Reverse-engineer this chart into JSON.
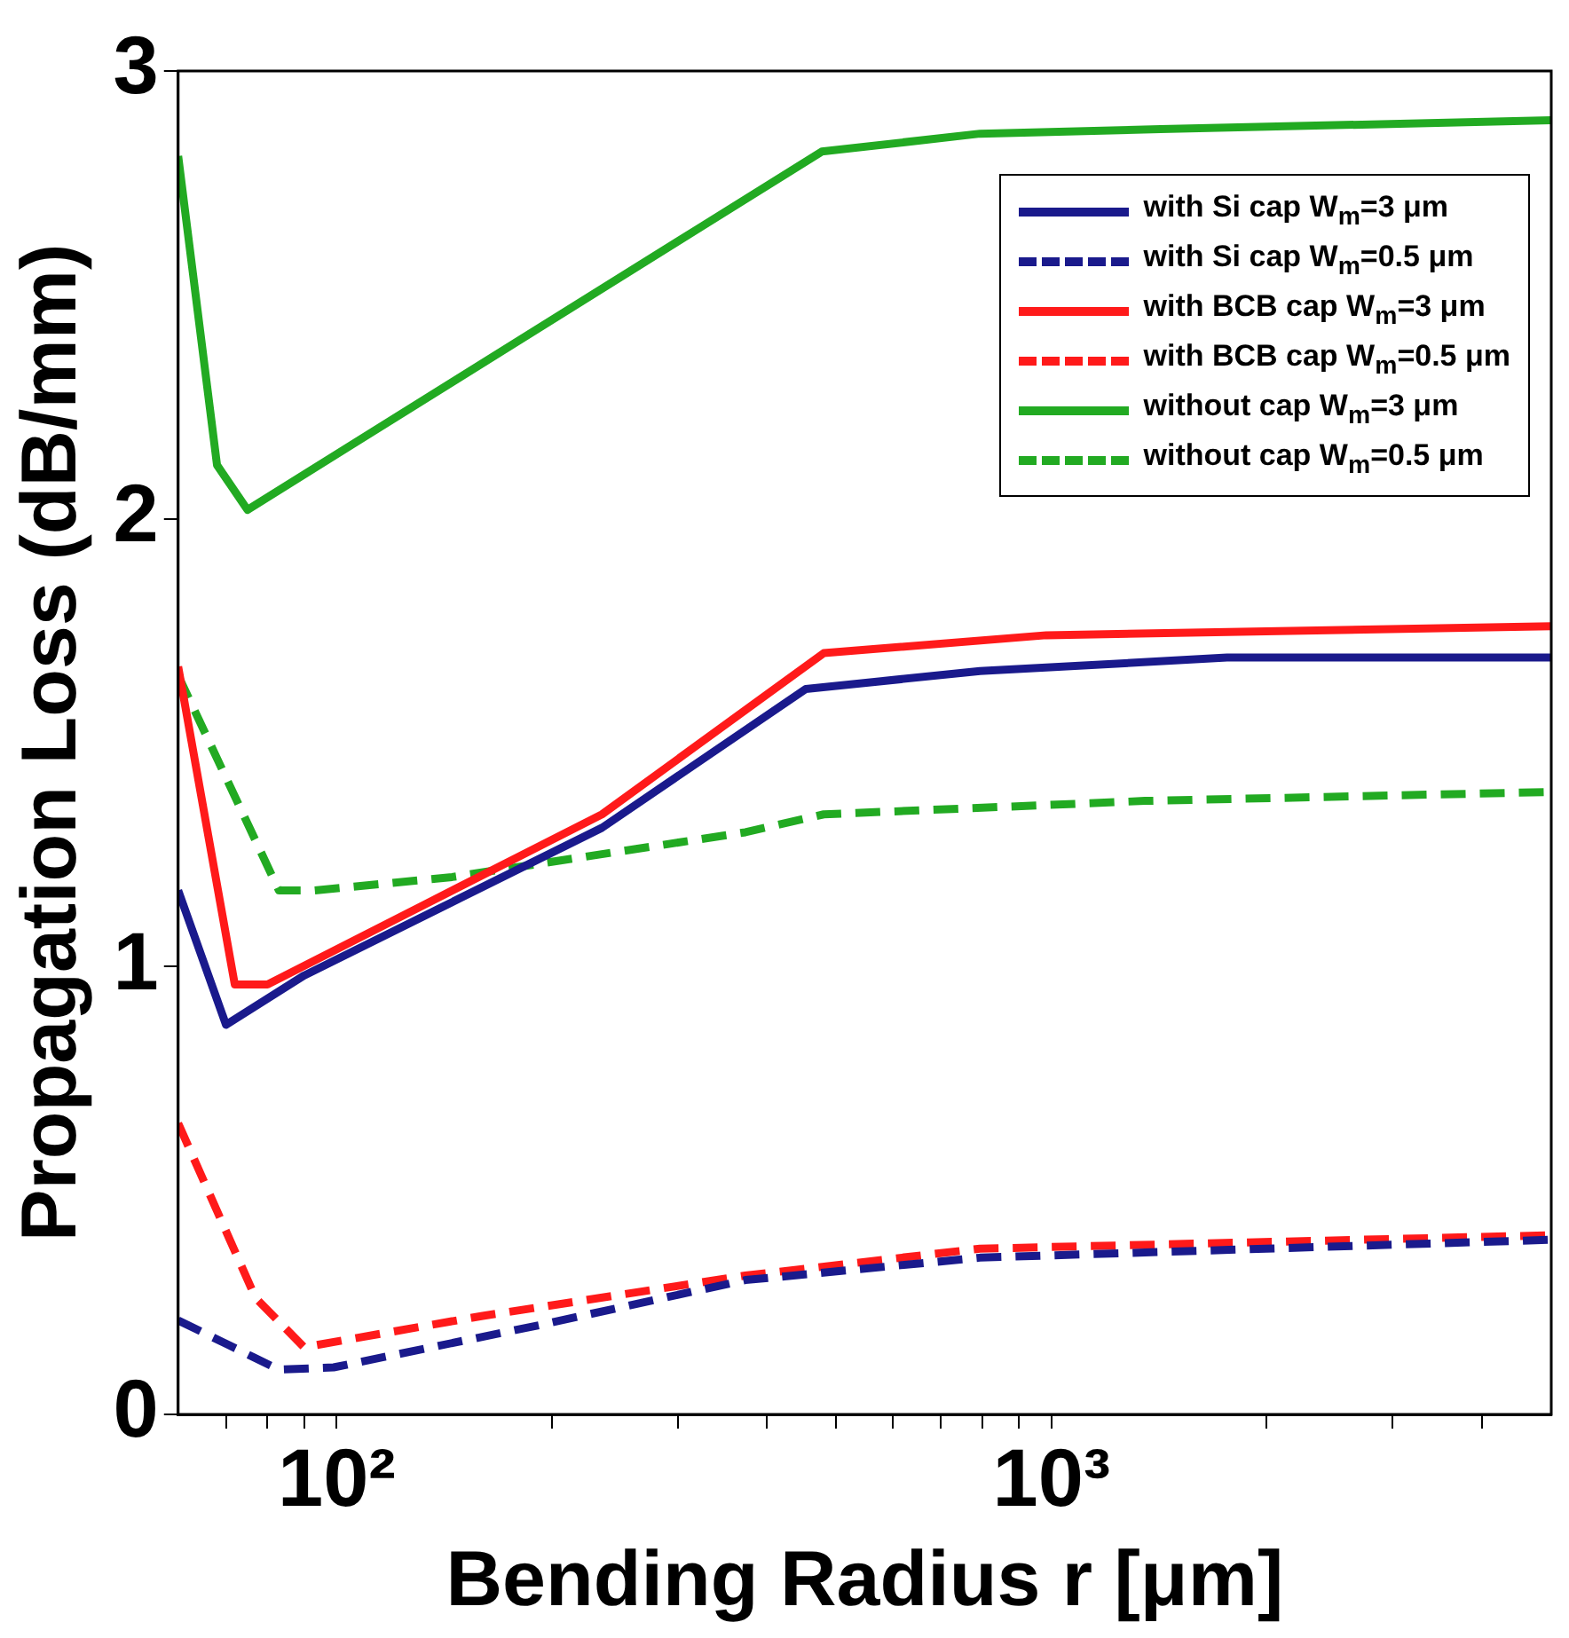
{
  "chart_data": {
    "type": "line",
    "xlabel": "Bending Radius r [μm]",
    "ylabel": "Propagation Loss (dB/mm)",
    "log": "x",
    "xlim": [
      60,
      5000
    ],
    "ylim": [
      0,
      3
    ],
    "xticks": [
      {
        "value": 70,
        "label": null
      },
      {
        "value": 80,
        "label": null
      },
      {
        "value": 90,
        "label": null
      },
      {
        "value": 100,
        "label": "10²"
      },
      {
        "value": 200,
        "label": null
      },
      {
        "value": 300,
        "label": null
      },
      {
        "value": 400,
        "label": null
      },
      {
        "value": 500,
        "label": null
      },
      {
        "value": 600,
        "label": null
      },
      {
        "value": 700,
        "label": null
      },
      {
        "value": 800,
        "label": null
      },
      {
        "value": 900,
        "label": null
      },
      {
        "value": 1000,
        "label": "10³"
      },
      {
        "value": 2000,
        "label": null
      },
      {
        "value": 3000,
        "label": null
      },
      {
        "value": 4000,
        "label": null
      }
    ],
    "yticks": [
      0,
      1,
      2,
      3
    ],
    "grid": false,
    "legend": "top right",
    "marker": "none",
    "series": [
      {
        "name": "with Si cap W$_{m}$=3 μm",
        "color": "#1a1a8c",
        "line_style": "solid",
        "x": [
          60,
          70,
          90,
          235,
          453,
          794,
          1760,
          5000
        ],
        "values": [
          1.17,
          0.87,
          0.98,
          1.31,
          1.62,
          1.66,
          1.69,
          1.69
        ]
      },
      {
        "name": "with Si cap W$_{m}$=0.5 μm",
        "color": "#1a1a8c",
        "line_style": "dashed",
        "x": [
          60,
          83,
          99,
          193,
          373,
          794,
          5000
        ],
        "values": [
          0.21,
          0.1,
          0.105,
          0.2,
          0.3,
          0.35,
          0.39
        ]
      },
      {
        "name": "with BCB cap W$_{m}$=3 μm",
        "color": "#ff1a1a",
        "line_style": "solid",
        "x": [
          60,
          72,
          80,
          235,
          480,
          983,
          5000
        ],
        "values": [
          1.67,
          0.96,
          0.96,
          1.34,
          1.7,
          1.74,
          1.76
        ]
      },
      {
        "name": "with BCB cap W$_{m}$=0.5 μm",
        "color": "#ff1a1a",
        "line_style": "dashed",
        "x": [
          60,
          77,
          90,
          160,
          373,
          794,
          5000
        ],
        "values": [
          0.65,
          0.26,
          0.15,
          0.22,
          0.31,
          0.37,
          0.4
        ]
      },
      {
        "name": "without cap W$_{m}$=3 μm",
        "color": "#22aa22",
        "line_style": "solid",
        "x": [
          60,
          68,
          75,
          477,
          794,
          1420,
          5000
        ],
        "values": [
          2.81,
          2.12,
          2.02,
          2.82,
          2.86,
          2.87,
          2.89
        ]
      },
      {
        "name": "without cap W$_{m}$=0.5 μm",
        "color": "#22aa22",
        "line_style": "dashed",
        "x": [
          60,
          83,
          93,
          145,
          373,
          480,
          1350,
          5000
        ],
        "values": [
          1.65,
          1.17,
          1.17,
          1.2,
          1.3,
          1.34,
          1.37,
          1.39
        ]
      }
    ]
  }
}
